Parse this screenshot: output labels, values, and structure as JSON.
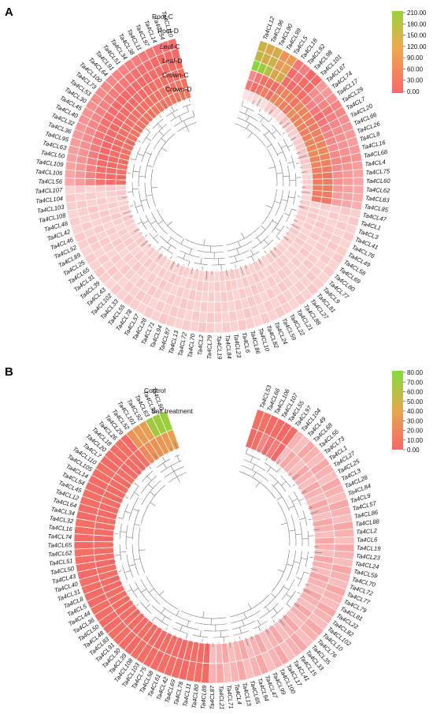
{
  "chart_data": [
    {
      "type": "heatmap",
      "panel": "A",
      "rings": [
        "Root-C",
        "Root-D",
        "Leaf-C",
        "Leaf-D",
        "Crown-C",
        "Crown-D"
      ],
      "legend_ticks": [
        "210.00",
        "180.00",
        "150.00",
        "120.00",
        "90.00",
        "60.00",
        "30.00",
        "0.00"
      ],
      "vmin": 0,
      "vmax": 210,
      "leaves": [
        "Ta4CL12",
        "Ta4CL96",
        "Ta4CL90",
        "Ta4CL99",
        "Ta4CL5",
        "Ta4CL18",
        "Ta4CL92",
        "Ta4CL98",
        "Ta4CL101",
        "Ta4CL67",
        "Ta4CL74",
        "Ta4CL17",
        "Ta4CL29",
        "Ta4CL7",
        "Ta4CL20",
        "Ta4CL66",
        "Ta4CL26",
        "Ta4CL8",
        "Ta4CL16",
        "Ta4CL68",
        "Ta4CL4",
        "Ta4CL75",
        "Ta4CL60",
        "Ta4CL62",
        "Ta4CL83",
        "Ta4CL85",
        "Ta4CL47",
        "Ta4CL1",
        "Ta4CL3",
        "Ta4CL41",
        "Ta4CL76",
        "Ta4CL49",
        "Ta4CL58",
        "Ta4CL69",
        "Ta4CL80",
        "Ta4CL77",
        "Ta4CL9",
        "Ta4CL81",
        "Ta4CL27",
        "Ta4CL88",
        "Ta4CL21",
        "Ta4CL22",
        "Ta4CL59",
        "Ta4CL24",
        "Ta4CL82",
        "Ta4CL10",
        "Ta4CL86",
        "Ta4CL6",
        "Ta4CL23",
        "Ta4CL84",
        "Ta4CL19",
        "Ta4CL79",
        "Ta4CL2",
        "Ta4CL70",
        "Ta4CL72",
        "Ta4CL13",
        "Ta4CL87",
        "Ta4CL94",
        "Ta4CL71",
        "Ta4CL28",
        "Ta4CL57",
        "Ta4CL78",
        "Ta4CL55",
        "Ta4CL33",
        "Ta4CL102",
        "Ta4CL43",
        "Ta4CL39",
        "Ta4CL31",
        "Ta4CL65",
        "Ta4CL25",
        "Ta4CL89",
        "Ta4CL52",
        "Ta4CL46",
        "Ta4CL42",
        "Ta4CL48",
        "Ta4CL108",
        "Ta4CL103",
        "Ta4CL104",
        "Ta4CL107",
        "Ta4CL56",
        "Ta4CL106",
        "Ta4CL109",
        "Ta4CL50",
        "Ta4CL63",
        "Ta4CL95",
        "Ta4CL36",
        "Ta4CL32",
        "Ta4CL40",
        "Ta4CL45",
        "Ta4CL30",
        "Ta4CL53",
        "Ta4CL73",
        "Ta4CL100",
        "Ta4CL64",
        "Ta4CL91",
        "Ta4CL51",
        "Ta4CL34",
        "Ta4CL38",
        "Ta4CL11",
        "Ta4CL97",
        "Ta4CL14",
        "Ta4CL54",
        "Ta4CL110"
      ],
      "strong_pairs": [
        [
          0,
          30,
          25,
          210,
          150,
          140
        ],
        [
          2,
          40,
          30,
          190,
          130,
          120
        ],
        [
          5,
          50,
          45,
          160,
          140,
          130
        ],
        [
          3,
          60,
          50,
          120,
          100,
          90
        ],
        [
          2,
          45,
          40,
          130,
          110,
          100
        ],
        [
          8,
          70,
          60,
          40,
          35,
          30
        ],
        [
          10,
          75,
          70,
          35,
          30,
          28
        ],
        [
          6,
          65,
          60,
          45,
          40,
          35
        ],
        [
          5,
          55,
          50,
          42,
          38,
          33
        ],
        [
          12,
          80,
          75,
          30,
          25,
          22
        ],
        [
          8,
          70,
          68,
          28,
          25,
          22
        ],
        [
          9,
          72,
          68,
          30,
          27,
          24
        ],
        [
          7,
          65,
          60,
          33,
          30,
          27
        ],
        [
          6,
          60,
          58,
          30,
          28,
          26
        ],
        [
          8,
          68,
          65,
          28,
          26,
          24
        ],
        [
          9,
          70,
          66,
          27,
          25,
          23
        ],
        [
          10,
          74,
          70,
          26,
          24,
          22
        ],
        [
          11,
          80,
          76,
          25,
          23,
          21
        ],
        [
          9,
          72,
          69,
          26,
          24,
          22
        ],
        [
          8,
          68,
          64,
          27,
          25,
          23
        ],
        [
          6,
          60,
          58,
          25,
          23,
          21
        ],
        [
          5,
          55,
          52,
          24,
          22,
          20
        ],
        [
          7,
          62,
          58,
          23,
          21,
          19
        ],
        [
          8,
          65,
          62,
          22,
          20,
          18
        ],
        [
          6,
          60,
          56,
          21,
          19,
          17
        ],
        [
          5,
          55,
          52,
          20,
          18,
          16
        ]
      ],
      "weak_value": 5,
      "strong_left_count": 24
    },
    {
      "type": "heatmap",
      "panel": "B",
      "rings": [
        "Control",
        "Salt treatment"
      ],
      "legend_ticks": [
        "80.00",
        "70.00",
        "60.00",
        "50.00",
        "40.00",
        "30.00",
        "20.00",
        "10.00",
        "0.00"
      ],
      "vmin": 0,
      "vmax": 80,
      "leaves": [
        "Ta4CL53",
        "Ta4CL66",
        "Ta4CL106",
        "Ta4CL107",
        "Ta4CL55",
        "Ta4CL97",
        "Ta4CL104",
        "Ta4CL49",
        "Ta4CL68",
        "Ta4CL56",
        "Ta4CL73",
        "Ta4CL1",
        "Ta4CL27",
        "Ta4CL25",
        "Ta4CL3",
        "Ta4CL28",
        "Ta4CL84",
        "Ta4CL9",
        "Ta4CL57",
        "Ta4CL86",
        "Ta4CL88",
        "Ta4CL2",
        "Ta4CL6",
        "Ta4CL19",
        "Ta4CL23",
        "Ta4CL24",
        "Ta4CL59",
        "Ta4CL70",
        "Ta4CL72",
        "Ta4CL77",
        "Ta4CL79",
        "Ta4CL81",
        "Ta4CL22",
        "Ta4CL82",
        "Ta4CL102",
        "Ta4CL10",
        "Ta4CL76",
        "Ta4CL35",
        "Ta4CL33",
        "Ta4CL15",
        "Ta4CL41",
        "Ta4CL17",
        "Ta4CL100",
        "Ta4CL99",
        "Ta4CL47",
        "Ta4CL94",
        "Ta4CL65",
        "Ta4CL13",
        "Ta4CL4",
        "Ta4CL71",
        "Ta4CL21",
        "Ta4CL87",
        "Ta4CL89",
        "Ta4CL80",
        "Ta4CL11",
        "Ta4CL78",
        "Ta4CL69",
        "Ta4CL42",
        "Ta4CL61",
        "Ta4CL58",
        "Ta4CL75",
        "Ta4CL103",
        "Ta4CL108",
        "Ta4CL39",
        "Ta4CL30",
        "Ta4CL91",
        "Ta4CL83",
        "Ta4CL48",
        "Ta4CL50",
        "Ta4CL36",
        "Ta4CL44",
        "Ta4CL5",
        "Ta4CL8",
        "Ta4CL31",
        "Ta4CL40",
        "Ta4CL43",
        "Ta4CL50",
        "Ta4CL51",
        "Ta4CL62",
        "Ta4CL65",
        "Ta4CL74",
        "Ta4CL16",
        "Ta4CL32",
        "Ta4CL34",
        "Ta4CL64",
        "Ta4CL12",
        "Ta4CL45",
        "Ta4CL54",
        "Ta4CL14",
        "Ta4CL105",
        "Ta4CL110",
        "Ta4CL7",
        "Ta4CL20",
        "Ta4CL18",
        "Ta4CL26",
        "Ta4CL29",
        "Ta4CL52",
        "Ta4CL101",
        "Ta4CL92",
        "Ta4CL63",
        "Ta4CL38",
        "Ta4CL90"
      ],
      "left_values": [
        [
          40,
          75
        ],
        [
          38,
          72
        ],
        [
          36,
          70
        ],
        [
          34,
          40
        ],
        [
          32,
          38
        ],
        [
          30,
          35
        ]
      ],
      "mid_value": 12,
      "weak_value": 5,
      "dark_right": [
        [
          14,
          16
        ],
        [
          16,
          18
        ],
        [
          10,
          14
        ],
        [
          12,
          15
        ],
        [
          11,
          13
        ],
        [
          13,
          15
        ]
      ]
    }
  ]
}
